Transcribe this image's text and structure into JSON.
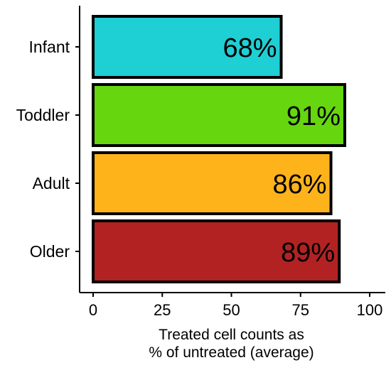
{
  "chart_data": {
    "type": "bar",
    "orientation": "horizontal",
    "categories": [
      "Infant",
      "Toddler",
      "Adult",
      "Older"
    ],
    "values": [
      68,
      91,
      86,
      89
    ],
    "data_labels": [
      "68%",
      "91%",
      "86%",
      "89%"
    ],
    "colors": [
      "#1ecfd4",
      "#66d60f",
      "#ffb31a",
      "#b22222"
    ],
    "xlabel_lines": [
      "Treated cell counts as",
      "% of untreated (average)"
    ],
    "xlim": [
      0,
      100
    ],
    "xticks": [
      0,
      25,
      50,
      75,
      100
    ],
    "xtick_labels": [
      "0",
      "25",
      "50",
      "75",
      "100"
    ],
    "grid": false
  }
}
